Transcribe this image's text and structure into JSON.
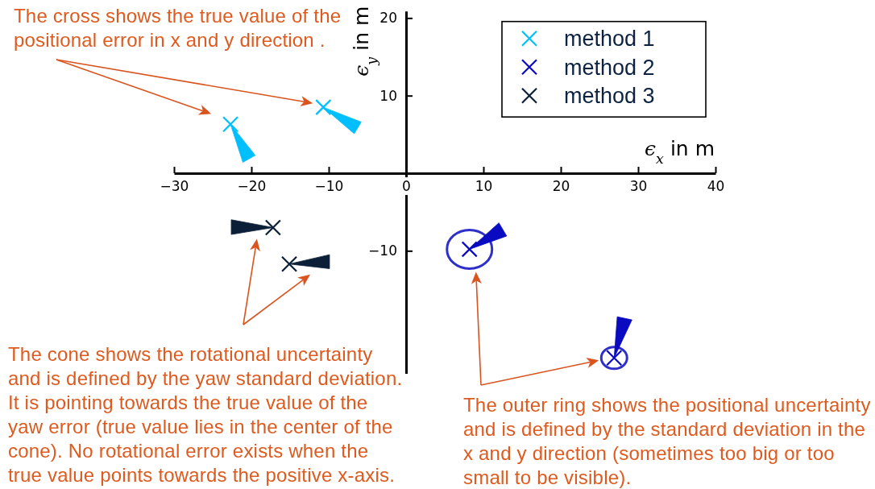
{
  "chart_data": {
    "type": "scatter",
    "xlabel": "ϵ$_{x}$ in m",
    "ylabel": "ϵ$_{y}$ in m",
    "xlim": [
      -30,
      40
    ],
    "xticks": [
      -30,
      -20,
      -10,
      0,
      10,
      20,
      30,
      40
    ],
    "ylim": [
      -25.8,
      20.9
    ],
    "yticks": [
      -10,
      10,
      20
    ],
    "legend": "top right",
    "marker": "cross",
    "series": [
      {
        "name": "method 1",
        "color": "#00bfff",
        "x": [
          -22.7,
          -10.7
        ],
        "values": [
          6.3,
          8.5
        ]
      },
      {
        "name": "method 2",
        "color": "#0a0ac0",
        "x": [
          8.2,
          26.9
        ],
        "values": [
          -9.8,
          -23.8
        ]
      },
      {
        "name": "method 3",
        "color": "#0b1f38",
        "x": [
          -17.2,
          -15.1
        ],
        "values": [
          -7.0,
          -11.7
        ]
      },
      {
        "type": "area",
        "marker": "none",
        "color": "#00bfff",
        "x": [
          -22.7,
          -21.1,
          -19.5
        ],
        "values": [
          6.3,
          1.4,
          2.3
        ]
      },
      {
        "type": "area",
        "marker": "none",
        "color": "#00bfff",
        "x": [
          -10.7,
          -6.7,
          -5.8
        ],
        "values": [
          8.5,
          5.1,
          6.6
        ]
      },
      {
        "type": "area",
        "marker": "none",
        "color": "#0a0ac0",
        "x": [
          8.2,
          12.0,
          13.0
        ],
        "values": [
          -9.8,
          -6.4,
          -8.1
        ]
      },
      {
        "type": "area",
        "marker": "none",
        "color": "#0a0ac0",
        "x": [
          26.9,
          27.3,
          29.2
        ],
        "values": [
          -23.8,
          -18.5,
          -18.9
        ]
      },
      {
        "type": "area",
        "marker": "none",
        "color": "#0b1f38",
        "x": [
          -17.2,
          -22.6,
          -22.6
        ],
        "values": [
          -7.0,
          -6.0,
          -7.9
        ]
      },
      {
        "type": "area",
        "marker": "none",
        "color": "#0b1f38",
        "x": [
          -15.1,
          -9.9,
          -9.9
        ],
        "values": [
          -11.7,
          -10.5,
          -12.3
        ]
      }
    ],
    "annotations": [
      "The cross shows the true value of the\npositional error in x and y direction .",
      "The cone shows the rotational uncertainty\nand is defined by the yaw standard deviation.\nIt is pointing towards the true value of the\nyaw error (true value lies in the center of the\ncone). No rotational error exists when the\ntrue value points towards the positive x-axis.",
      "The outer ring shows the positional uncertainty\nand is defined by the standard deviation in the\nx and y direction (sometimes too big or too\nsmall to be visible)."
    ]
  }
}
